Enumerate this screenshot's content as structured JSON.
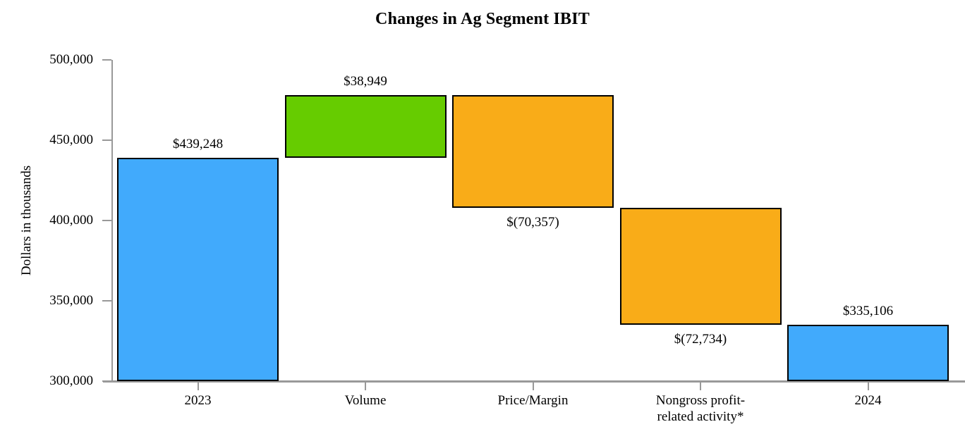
{
  "chart_data": {
    "type": "bar",
    "subtype": "waterfall",
    "title": "Changes in Ag Segment IBIT",
    "ylabel": "Dollars in thousands",
    "xlabel": "",
    "ylim": [
      300000,
      500000
    ],
    "grid": false,
    "legend": false,
    "y_ticks": [
      {
        "value": 300000,
        "label": "300,000"
      },
      {
        "value": 350000,
        "label": "350,000"
      },
      {
        "value": 400000,
        "label": "400,000"
      },
      {
        "value": 450000,
        "label": "450,000"
      },
      {
        "value": 500000,
        "label": "500,000"
      }
    ],
    "categories": [
      "2023",
      "Volume",
      "Price/Margin",
      "Nongross profit-related activity*",
      "2024"
    ],
    "bars": [
      {
        "id": "2023",
        "category_lines": [
          "2023"
        ],
        "value": 439248,
        "value_label": "$439,248",
        "from": 300000,
        "to": 439248,
        "role": "total",
        "color": "#41AAFC",
        "label_side": "above"
      },
      {
        "id": "volume",
        "category_lines": [
          "Volume"
        ],
        "value": 38949,
        "value_label": "$38,949",
        "from": 439248,
        "to": 478197,
        "role": "increase",
        "color": "#66CC00",
        "label_side": "above"
      },
      {
        "id": "price-margin",
        "category_lines": [
          "Price/Margin"
        ],
        "value": -70357,
        "value_label": "$(70,357)",
        "from": 478197,
        "to": 407840,
        "role": "decrease",
        "color": "#F9AC18",
        "label_side": "below"
      },
      {
        "id": "nongross-profit-related-activity",
        "category_lines": [
          "Nongross profit-",
          "related activity*"
        ],
        "value": -72734,
        "value_label": "$(72,734)",
        "from": 407840,
        "to": 335106,
        "role": "decrease",
        "color": "#F9AC18",
        "label_side": "below"
      },
      {
        "id": "2024",
        "category_lines": [
          "2024"
        ],
        "value": 335106,
        "value_label": "$335,106",
        "from": 300000,
        "to": 335106,
        "role": "total",
        "color": "#41AAFC",
        "label_side": "above"
      }
    ],
    "colors": {
      "total": "#41AAFC",
      "increase": "#66CC00",
      "decrease": "#F9AC18",
      "axis": "#999999",
      "bar_border": "#000000",
      "text": "#000000"
    }
  }
}
